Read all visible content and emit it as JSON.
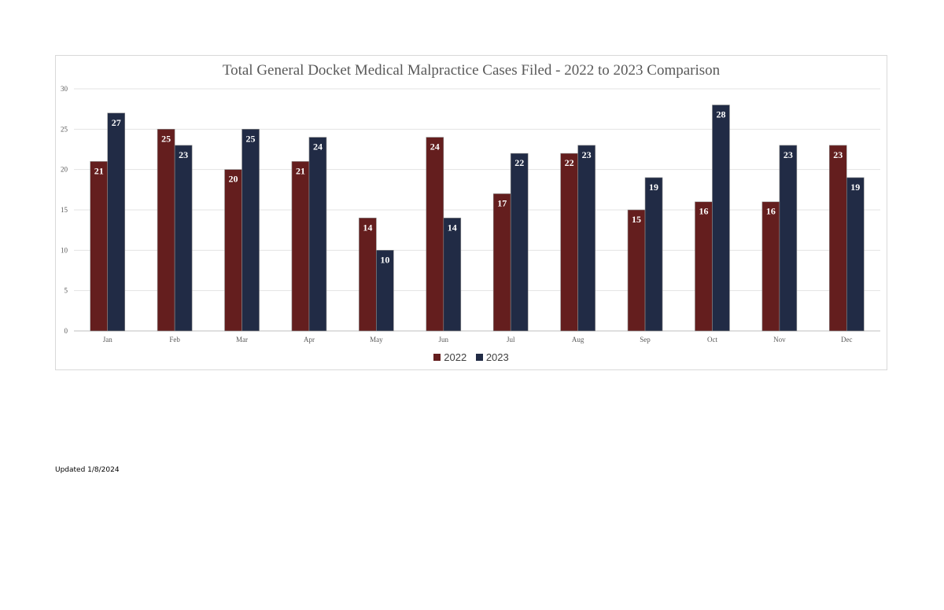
{
  "chart_data": {
    "type": "bar",
    "title": "Total General Docket Medical Malpractice Cases Filed - 2022 to 2023 Comparison",
    "categories": [
      "Jan",
      "Feb",
      "Mar",
      "Apr",
      "May",
      "Jun",
      "Jul",
      "Aug",
      "Sep",
      "Oct",
      "Nov",
      "Dec"
    ],
    "series": [
      {
        "name": "2022",
        "color": "#641e1e",
        "values": [
          21,
          25,
          20,
          21,
          14,
          24,
          17,
          22,
          15,
          16,
          16,
          23
        ]
      },
      {
        "name": "2023",
        "color": "#212b45",
        "values": [
          27,
          23,
          25,
          24,
          10,
          14,
          22,
          23,
          19,
          28,
          23,
          19
        ]
      }
    ],
    "ylim": [
      0,
      30
    ],
    "yticks": [
      0,
      5,
      10,
      15,
      20,
      25,
      30
    ],
    "grid": true,
    "legend": "bottom"
  },
  "footer": {
    "updated_text": "Updated 1/8/2024"
  }
}
